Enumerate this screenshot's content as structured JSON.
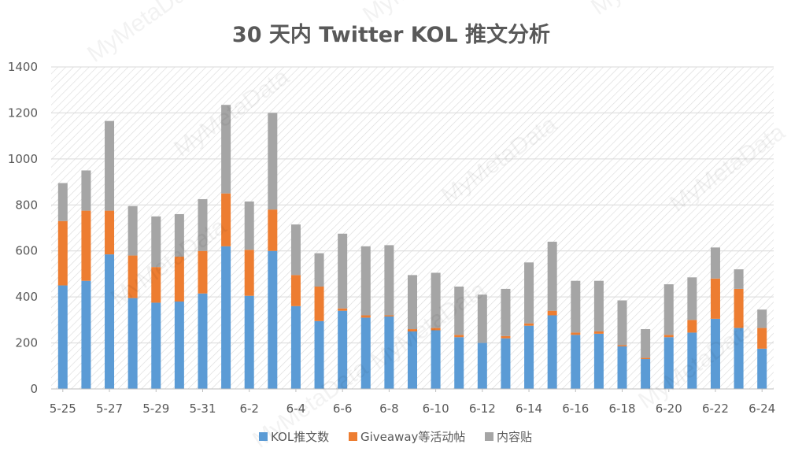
{
  "chart_data": {
    "type": "bar",
    "stacked": true,
    "title": "30 天内 Twitter KOL 推文分析",
    "xlabel": "",
    "ylabel": "",
    "ylim": [
      0,
      1400
    ],
    "yticks": [
      0,
      200,
      400,
      600,
      800,
      1000,
      1200,
      1400
    ],
    "grid": true,
    "legend_position": "bottom",
    "categories": [
      "5-25",
      "5-26",
      "5-27",
      "5-28",
      "5-29",
      "5-30",
      "5-31",
      "6-1",
      "6-2",
      "6-3",
      "6-4",
      "6-5",
      "6-6",
      "6-7",
      "6-8",
      "6-9",
      "6-10",
      "6-11",
      "6-12",
      "6-13",
      "6-14",
      "6-15",
      "6-16",
      "6-17",
      "6-18",
      "6-19",
      "6-20",
      "6-21",
      "6-22",
      "6-23",
      "6-24"
    ],
    "xtick_labels": [
      "5-25",
      "5-27",
      "5-29",
      "5-31",
      "6-2",
      "6-4",
      "6-6",
      "6-8",
      "6-10",
      "6-12",
      "6-14",
      "6-16",
      "6-18",
      "6-20",
      "6-22",
      "6-24"
    ],
    "series": [
      {
        "name": "KOL推文数",
        "color": "#5B9BD5",
        "values": [
          450,
          470,
          585,
          395,
          375,
          380,
          415,
          620,
          405,
          600,
          360,
          295,
          340,
          310,
          315,
          250,
          255,
          225,
          200,
          220,
          275,
          320,
          235,
          240,
          185,
          130,
          225,
          245,
          305,
          265,
          175
        ]
      },
      {
        "name": "Giveaway等活动帖",
        "color": "#ED7D31",
        "values": [
          280,
          305,
          190,
          185,
          155,
          195,
          185,
          230,
          200,
          180,
          135,
          150,
          10,
          10,
          5,
          10,
          10,
          10,
          0,
          10,
          10,
          20,
          10,
          10,
          5,
          5,
          10,
          55,
          175,
          170,
          90
        ]
      },
      {
        "name": "内容贴",
        "color": "#A5A5A5",
        "values": [
          165,
          175,
          390,
          215,
          220,
          185,
          225,
          385,
          210,
          420,
          220,
          145,
          325,
          300,
          305,
          235,
          240,
          210,
          210,
          205,
          265,
          300,
          225,
          220,
          195,
          125,
          220,
          185,
          135,
          85,
          80
        ]
      }
    ],
    "watermark": "MyMetaData"
  }
}
